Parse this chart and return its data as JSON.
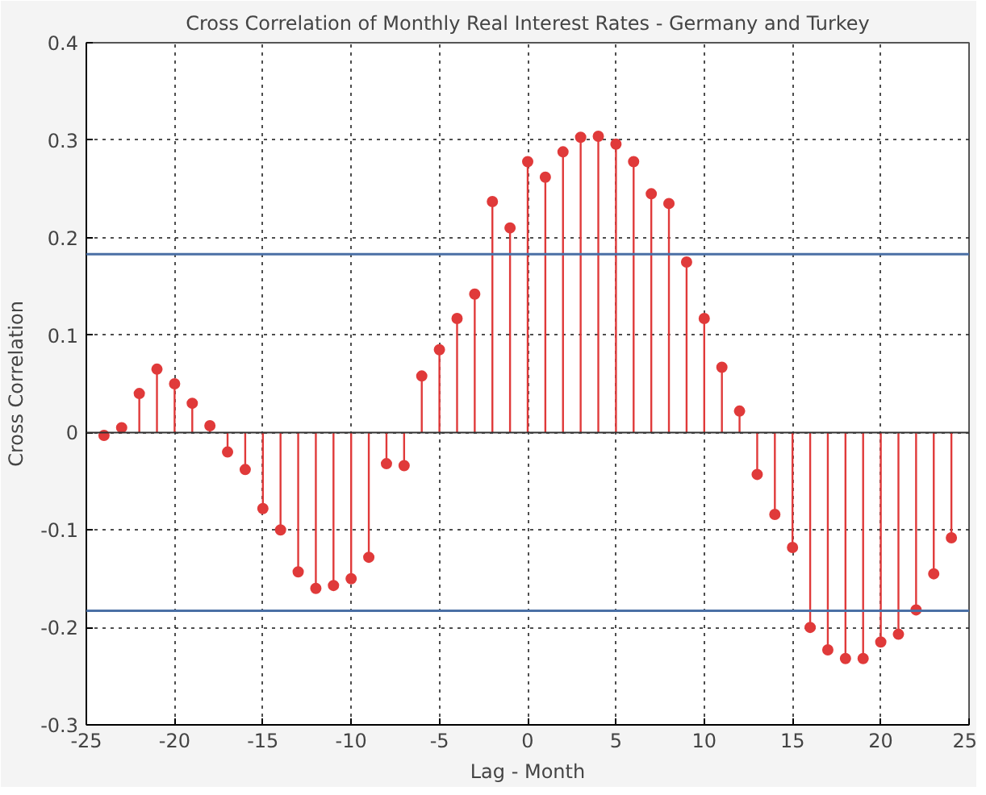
{
  "chart_data": {
    "type": "lollipop",
    "title": "Cross Correlation of Monthly Real Interest Rates - Germany and Turkey",
    "xlabel": "Lag - Month",
    "ylabel": "Cross Correlation",
    "x": [
      -24,
      -23,
      -22,
      -21,
      -20,
      -19,
      -18,
      -17,
      -16,
      -15,
      -14,
      -13,
      -12,
      -11,
      -10,
      -9,
      -8,
      -7,
      -6,
      -5,
      -4,
      -3,
      -2,
      -1,
      0,
      1,
      2,
      3,
      4,
      5,
      6,
      7,
      8,
      9,
      10,
      11,
      12,
      13,
      14,
      15,
      16,
      17,
      18,
      19,
      20,
      21,
      22,
      23,
      24
    ],
    "series": [
      {
        "color": "#e03a3a",
        "values": [
          -0.003,
          0.005,
          0.04,
          0.065,
          0.05,
          0.03,
          0.007,
          -0.02,
          -0.038,
          -0.078,
          -0.1,
          -0.143,
          -0.16,
          -0.157,
          -0.15,
          -0.128,
          -0.032,
          -0.034,
          0.058,
          0.085,
          0.117,
          0.142,
          0.237,
          0.21,
          0.278,
          0.262,
          0.288,
          0.303,
          0.304,
          0.296,
          0.278,
          0.245,
          0.235,
          0.175,
          0.117,
          0.067,
          0.022,
          -0.043,
          -0.084,
          -0.118,
          -0.2,
          -0.223,
          -0.232,
          -0.232,
          -0.215,
          -0.207,
          -0.182,
          -0.145,
          -0.108
        ]
      }
    ],
    "xlim": [
      -25,
      25
    ],
    "ylim": [
      -0.3,
      0.4
    ],
    "xticks": [
      -25,
      -20,
      -15,
      -10,
      -5,
      0,
      5,
      10,
      15,
      20,
      25
    ],
    "yticks": [
      -0.3,
      -0.2,
      -0.1,
      0,
      0.1,
      0.2,
      0.3,
      0.4
    ],
    "ref_lines": [
      {
        "axis": "y",
        "value": 0.183,
        "color": "#4a6fa5"
      },
      {
        "axis": "y",
        "value": -0.183,
        "color": "#4a6fa5"
      }
    ],
    "grid": true,
    "marker": "circle"
  }
}
